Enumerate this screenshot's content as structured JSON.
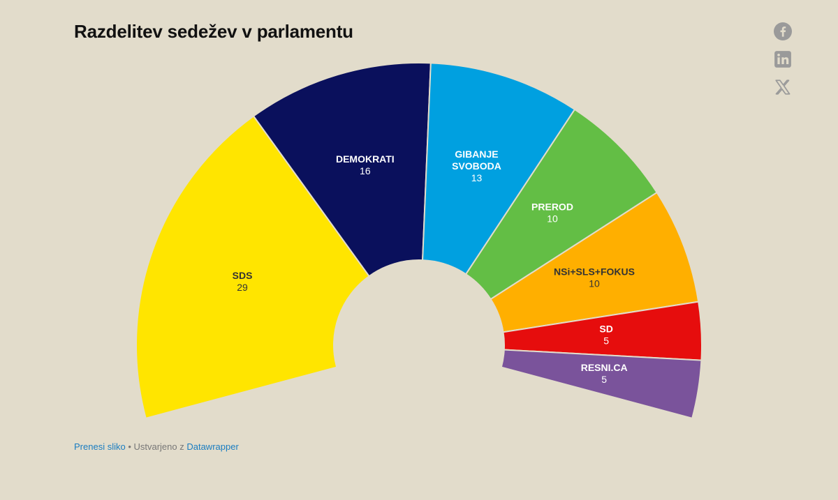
{
  "title": "Razdelitev sedežev v parlamentu",
  "share": {
    "facebook": "facebook-icon",
    "linkedin": "linkedin-icon",
    "x": "x-icon"
  },
  "footer": {
    "download_link": "Prenesi sliko",
    "separator": " • Ustvarjeno z ",
    "tool_link": "Datawrapper"
  },
  "chart_data": {
    "type": "parliament",
    "title": "Razdelitev sedežev v parlamentu",
    "total_seats": 88,
    "series": [
      {
        "name": "SDS",
        "label_lines": [
          "SDS"
        ],
        "value": 29,
        "color": "#ffe500",
        "text_color": "#333333"
      },
      {
        "name": "DEMOKRATI",
        "label_lines": [
          "DEMOKRATI"
        ],
        "value": 16,
        "color": "#0a105c",
        "text_color": "#ffffff"
      },
      {
        "name": "GIBANJE SVOBODA",
        "label_lines": [
          "GIBANJE",
          "SVOBODA"
        ],
        "value": 13,
        "color": "#00a0e0",
        "text_color": "#ffffff"
      },
      {
        "name": "PREROD",
        "label_lines": [
          "PREROD"
        ],
        "value": 10,
        "color": "#63be45",
        "text_color": "#ffffff"
      },
      {
        "name": "NSi+SLS+FOKUS",
        "label_lines": [
          "NSi+SLS+FOKUS"
        ],
        "value": 10,
        "color": "#ffaf00",
        "text_color": "#333333"
      },
      {
        "name": "SD",
        "label_lines": [
          "SD"
        ],
        "value": 5,
        "color": "#e60d0d",
        "text_color": "#ffffff"
      },
      {
        "name": "RESNI.CA",
        "label_lines": [
          "RESNI.CA"
        ],
        "value": 5,
        "color": "#7a539b",
        "text_color": "#ffffff"
      }
    ]
  }
}
